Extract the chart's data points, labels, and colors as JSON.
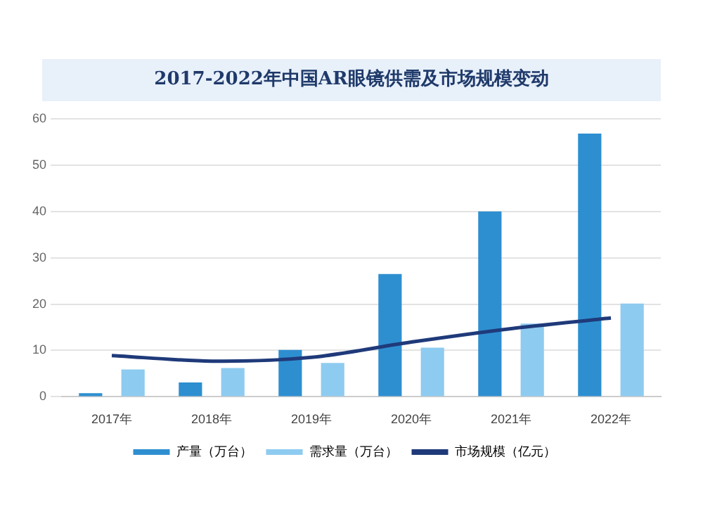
{
  "chart_data": {
    "type": "bar",
    "title": "2017-2022年中国AR眼镜供需及市场规模变动",
    "categories": [
      "2017年",
      "2018年",
      "2019年",
      "2020年",
      "2021年",
      "2022年"
    ],
    "series": [
      {
        "name": "产量（万台）",
        "color": "#2e8fd0",
        "values": [
          0.8,
          3.1,
          10.1,
          26.5,
          40,
          56.8
        ]
      },
      {
        "name": "需求量（万台）",
        "color": "#8ecbf0",
        "values": [
          5.9,
          6.2,
          7.3,
          10.6,
          15.8,
          20.1
        ]
      },
      {
        "name": "市场规模（亿元）",
        "type": "line",
        "color": "#1f3a7a",
        "values": [
          8.9,
          7.7,
          8.5,
          11.8,
          14.7,
          17.0
        ]
      }
    ],
    "ylim": [
      0,
      60
    ],
    "yticks": [
      0,
      10,
      20,
      30,
      40,
      50,
      60
    ],
    "grid": "y",
    "legend": "bottom",
    "marker": "none"
  }
}
